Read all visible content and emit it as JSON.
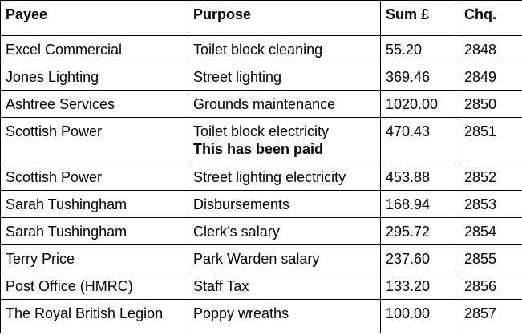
{
  "table": {
    "headers": [
      "Payee",
      "Purpose",
      "Sum £",
      "Chq."
    ],
    "rows": [
      {
        "payee": "Excel Commercial",
        "purpose": "Toilet block cleaning",
        "note": "",
        "sum": "55.20",
        "chq": "2848"
      },
      {
        "payee": "Jones Lighting",
        "purpose": "Street lighting",
        "note": "",
        "sum": "369.46",
        "chq": "2849"
      },
      {
        "payee": "Ashtree Services",
        "purpose": "Grounds maintenance",
        "note": "",
        "sum": "1020.00",
        "chq": "2850"
      },
      {
        "payee": "Scottish Power",
        "purpose": "Toilet block electricity",
        "note": "This has been paid",
        "sum": "470.43",
        "chq": "2851"
      },
      {
        "payee": "Scottish Power",
        "purpose": "Street lighting electricity",
        "note": "",
        "sum": "453.88",
        "chq": "2852"
      },
      {
        "payee": "Sarah Tushingham",
        "purpose": "Disbursements",
        "note": "",
        "sum": "168.94",
        "chq": "2853"
      },
      {
        "payee": "Sarah Tushingham",
        "purpose": "Clerk’s salary",
        "note": "",
        "sum": "295.72",
        "chq": "2854"
      },
      {
        "payee": "Terry Price",
        "purpose": "Park Warden salary",
        "note": "",
        "sum": "237.60",
        "chq": "2855"
      },
      {
        "payee": "Post Office (HMRC)",
        "purpose": "Staff Tax",
        "note": "",
        "sum": "133.20",
        "chq": "2856"
      },
      {
        "payee": "The Royal British Legion",
        "purpose": "Poppy wreaths",
        "note": "",
        "sum": "100.00",
        "chq": "2857"
      }
    ]
  }
}
